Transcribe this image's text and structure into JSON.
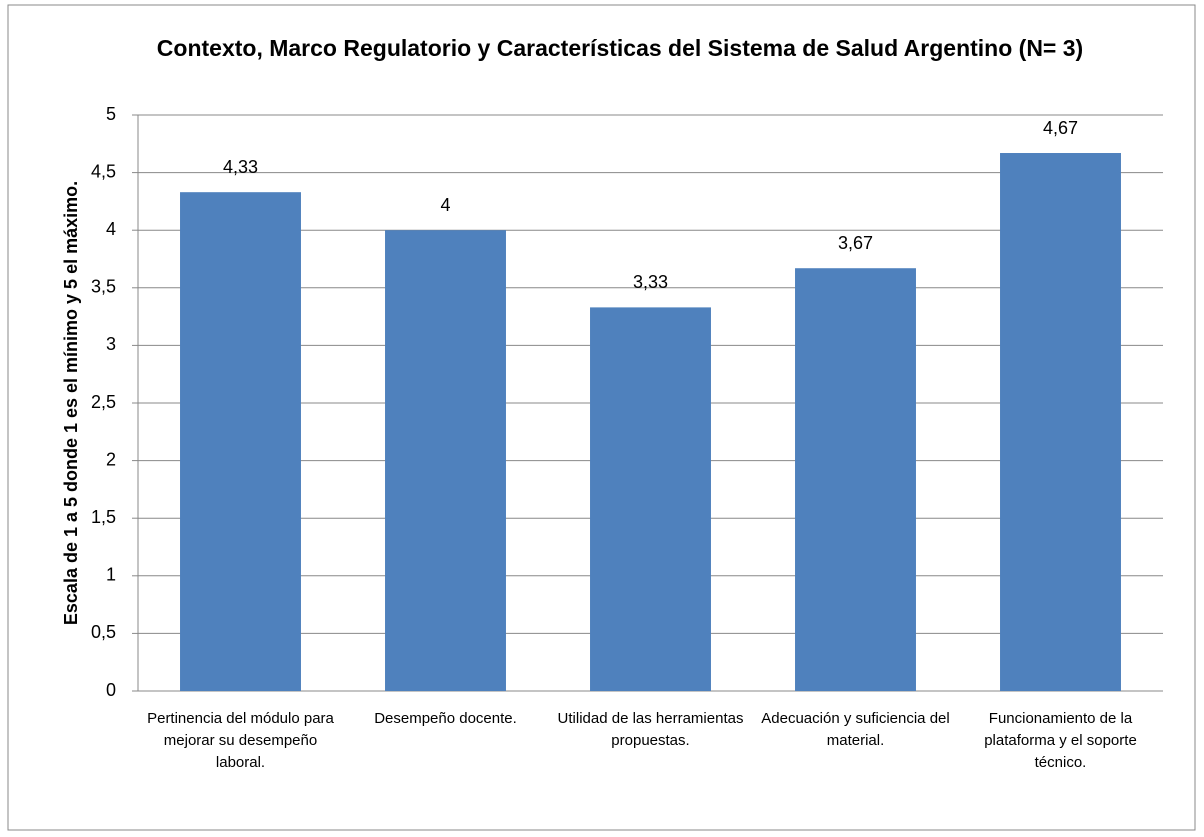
{
  "chart_data": {
    "type": "bar",
    "title": "Contexto, Marco Regulatorio y Características del Sistema de Salud Argentino (N= 3)",
    "y_label": "Escala de 1 a 5 donde 1 es el mínimo y 5 el máximo.",
    "categories": [
      "Pertinencia del módulo para mejorar su desempeño laboral.",
      "Desempeño docente.",
      "Utilidad de las herramientas propuestas.",
      "Adecuación y suficiencia del material.",
      "Funcionamiento de la plataforma y el soporte técnico."
    ],
    "values": [
      4.33,
      4,
      3.33,
      3.67,
      4.67
    ],
    "value_labels": [
      "4,33",
      "4",
      "3,33",
      "3,67",
      "4,67"
    ],
    "color": "#4f81bd",
    "ylim": [
      0,
      5
    ],
    "yticks": [
      0,
      {
        "value": 0.5,
        "label": "0,5"
      },
      1,
      {
        "value": 1.5,
        "label": "1,5"
      },
      2,
      {
        "value": 2.5,
        "label": "2,5"
      },
      3,
      {
        "value": 3.5,
        "label": "3,5"
      },
      4,
      {
        "value": 4.5,
        "label": "4,5"
      },
      5
    ],
    "grid": true
  }
}
